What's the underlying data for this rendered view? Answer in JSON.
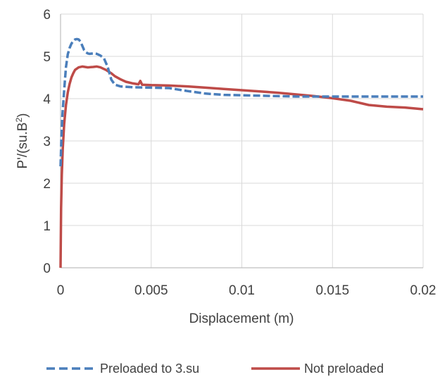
{
  "chart_data": {
    "type": "line",
    "title": "",
    "xlabel": "Displacement (m)",
    "ylabel_main": "P'/(su.B",
    "ylabel_sup": "2",
    "ylabel_close": ")",
    "xlim": [
      0,
      0.02
    ],
    "ylim": [
      0,
      6
    ],
    "x_ticks": [
      0,
      0.005,
      0.01,
      0.015,
      0.02
    ],
    "x_tick_labels": [
      "0",
      "0.005",
      "0.01",
      "0.015",
      "0.02"
    ],
    "y_ticks": [
      0,
      1,
      2,
      3,
      4,
      5,
      6
    ],
    "y_tick_labels": [
      "0",
      "1",
      "2",
      "3",
      "4",
      "5",
      "6"
    ],
    "grid": true,
    "legend_position": "bottom",
    "series": [
      {
        "name": "Preloaded to 3.su",
        "color": "#4a7ebb",
        "dash": "dashed",
        "points": [
          [
            0.0,
            2.4
          ],
          [
            5e-05,
            3.1
          ],
          [
            0.0001,
            3.6
          ],
          [
            0.0002,
            4.2
          ],
          [
            0.0003,
            4.75
          ],
          [
            0.0004,
            5.05
          ],
          [
            0.0005,
            5.2
          ],
          [
            0.0006,
            5.3
          ],
          [
            0.0007,
            5.36
          ],
          [
            0.0008,
            5.4
          ],
          [
            0.0009,
            5.41
          ],
          [
            0.001,
            5.4
          ],
          [
            0.0011,
            5.35
          ],
          [
            0.0012,
            5.25
          ],
          [
            0.0013,
            5.15
          ],
          [
            0.0014,
            5.1
          ],
          [
            0.0015,
            5.07
          ],
          [
            0.0016,
            5.06
          ],
          [
            0.0018,
            5.07
          ],
          [
            0.002,
            5.06
          ],
          [
            0.0022,
            5.02
          ],
          [
            0.0024,
            4.95
          ],
          [
            0.0026,
            4.75
          ],
          [
            0.0027,
            4.6
          ],
          [
            0.0028,
            4.45
          ],
          [
            0.003,
            4.33
          ],
          [
            0.0033,
            4.29
          ],
          [
            0.004,
            4.27
          ],
          [
            0.005,
            4.26
          ],
          [
            0.006,
            4.25
          ],
          [
            0.007,
            4.18
          ],
          [
            0.008,
            4.12
          ],
          [
            0.009,
            4.09
          ],
          [
            0.01,
            4.08
          ],
          [
            0.011,
            4.07
          ],
          [
            0.012,
            4.06
          ],
          [
            0.013,
            4.05
          ],
          [
            0.014,
            4.05
          ],
          [
            0.015,
            4.05
          ],
          [
            0.016,
            4.05
          ],
          [
            0.017,
            4.05
          ],
          [
            0.018,
            4.05
          ],
          [
            0.019,
            4.05
          ],
          [
            0.02,
            4.05
          ]
        ]
      },
      {
        "name": "Not preloaded",
        "color": "#be4b48",
        "dash": "solid",
        "points": [
          [
            0.0,
            0.0
          ],
          [
            3e-05,
            1.4
          ],
          [
            7e-05,
            2.2
          ],
          [
            0.00012,
            2.8
          ],
          [
            0.0002,
            3.4
          ],
          [
            0.0003,
            3.85
          ],
          [
            0.0004,
            4.15
          ],
          [
            0.0005,
            4.35
          ],
          [
            0.0006,
            4.5
          ],
          [
            0.0007,
            4.6
          ],
          [
            0.0008,
            4.68
          ],
          [
            0.001,
            4.74
          ],
          [
            0.0012,
            4.76
          ],
          [
            0.0015,
            4.74
          ],
          [
            0.0018,
            4.75
          ],
          [
            0.002,
            4.76
          ],
          [
            0.0022,
            4.74
          ],
          [
            0.0025,
            4.68
          ],
          [
            0.0028,
            4.6
          ],
          [
            0.003,
            4.53
          ],
          [
            0.0033,
            4.46
          ],
          [
            0.0036,
            4.4
          ],
          [
            0.004,
            4.36
          ],
          [
            0.0043,
            4.34
          ],
          [
            0.0044,
            4.42
          ],
          [
            0.0045,
            4.33
          ],
          [
            0.005,
            4.32
          ],
          [
            0.006,
            4.31
          ],
          [
            0.007,
            4.29
          ],
          [
            0.008,
            4.26
          ],
          [
            0.009,
            4.23
          ],
          [
            0.01,
            4.2
          ],
          [
            0.011,
            4.17
          ],
          [
            0.012,
            4.14
          ],
          [
            0.013,
            4.1
          ],
          [
            0.014,
            4.06
          ],
          [
            0.015,
            4.01
          ],
          [
            0.016,
            3.95
          ],
          [
            0.0165,
            3.9
          ],
          [
            0.017,
            3.85
          ],
          [
            0.018,
            3.81
          ],
          [
            0.019,
            3.79
          ],
          [
            0.02,
            3.75
          ]
        ]
      }
    ]
  }
}
